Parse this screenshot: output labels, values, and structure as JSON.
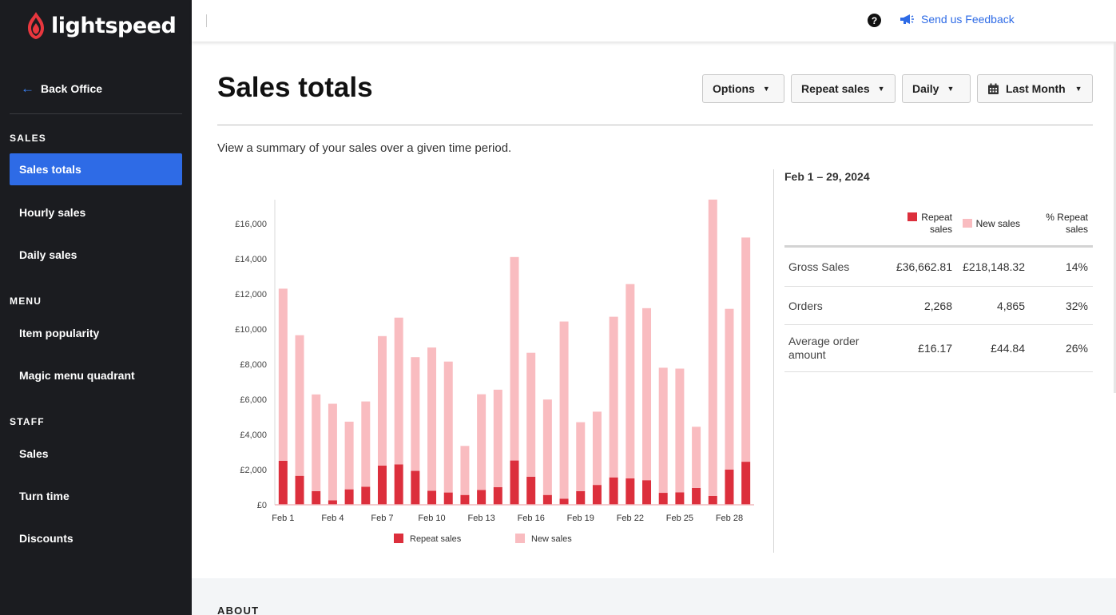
{
  "brand": {
    "name": "lightspeed"
  },
  "sidebar": {
    "back_label": "Back Office",
    "sections": [
      {
        "label": "SALES",
        "items": [
          "Sales totals",
          "Hourly sales",
          "Daily sales"
        ]
      },
      {
        "label": "MENU",
        "items": [
          "Item popularity",
          "Magic menu quadrant"
        ]
      },
      {
        "label": "STAFF",
        "items": [
          "Sales",
          "Turn time",
          "Discounts"
        ]
      }
    ],
    "active_item": "Sales totals"
  },
  "topbar": {
    "help_label": "?",
    "feedback_label": "Send us Feedback"
  },
  "page": {
    "title": "Sales totals",
    "subtitle": "View a summary of your sales over a given time period.",
    "controls": {
      "options": "Options",
      "mode": "Repeat sales",
      "interval": "Daily",
      "period": "Last Month"
    }
  },
  "summary": {
    "range": "Feb 1 – 29, 2024",
    "headers": {
      "repeat": [
        "Repeat",
        "sales"
      ],
      "new": "New sales",
      "pct": [
        "% Repeat",
        "sales"
      ]
    },
    "rows": [
      {
        "label": "Gross Sales",
        "repeat": "£36,662.81",
        "new": "£218,148.32",
        "pct": "14%"
      },
      {
        "label": "Orders",
        "repeat": "2,268",
        "new": "4,865",
        "pct": "32%"
      },
      {
        "label": "Average order amount",
        "repeat": "£16.17",
        "new": "£44.84",
        "pct": "26%"
      }
    ]
  },
  "chart_data": {
    "type": "bar",
    "stacked": true,
    "categories": [
      "Feb 1",
      "Feb 2",
      "Feb 3",
      "Feb 4",
      "Feb 5",
      "Feb 6",
      "Feb 7",
      "Feb 8",
      "Feb 9",
      "Feb 10",
      "Feb 11",
      "Feb 12",
      "Feb 13",
      "Feb 14",
      "Feb 15",
      "Feb 16",
      "Feb 17",
      "Feb 18",
      "Feb 19",
      "Feb 20",
      "Feb 21",
      "Feb 22",
      "Feb 23",
      "Feb 24",
      "Feb 25",
      "Feb 26",
      "Feb 27",
      "Feb 28",
      "Feb 29"
    ],
    "tick_labels": [
      "Feb 1",
      "Feb 4",
      "Feb 7",
      "Feb 10",
      "Feb 13",
      "Feb 16",
      "Feb 19",
      "Feb 22",
      "Feb 25",
      "Feb 28"
    ],
    "tick_every": 3,
    "series": [
      {
        "name": "Repeat sales",
        "color": "#dc2f3c",
        "values": [
          2500,
          1650,
          780,
          250,
          880,
          1030,
          2230,
          2300,
          1930,
          800,
          700,
          560,
          840,
          1000,
          2520,
          1600,
          560,
          350,
          780,
          1130,
          1560,
          1500,
          1400,
          680,
          710,
          960,
          500,
          2000,
          2450
        ]
      },
      {
        "name": "New sales",
        "color": "#f9bcc0",
        "values": [
          9800,
          8000,
          5500,
          5500,
          3850,
          4850,
          7370,
          8350,
          6470,
          8150,
          7450,
          2790,
          5450,
          5550,
          11580,
          7050,
          5430,
          10080,
          3920,
          4170,
          9140,
          11060,
          9790,
          7120,
          7040,
          3480,
          16870,
          9150,
          12760
        ]
      }
    ],
    "ylim": [
      0,
      17000
    ],
    "yticks": [
      0,
      2000,
      4000,
      6000,
      8000,
      10000,
      12000,
      14000,
      16000
    ],
    "ytick_labels": [
      "£0",
      "£2,000",
      "£4,000",
      "£6,000",
      "£8,000",
      "£10,000",
      "£12,000",
      "£14,000",
      "£16,000"
    ],
    "legend_position": "bottom",
    "grid": false
  },
  "about_label": "ABOUT"
}
